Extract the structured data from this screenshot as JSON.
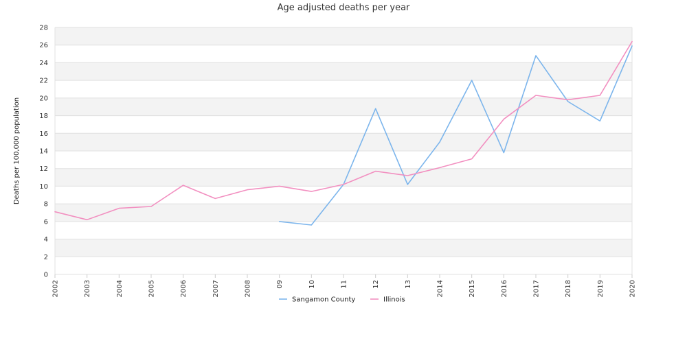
{
  "chart_data": {
    "type": "line",
    "title": "Age adjusted deaths per year",
    "xlabel": "",
    "ylabel": "Deaths per 100,000 population",
    "categories": [
      "2002",
      "2003",
      "2004",
      "2005",
      "2006",
      "2007",
      "2008",
      "09",
      "10",
      "11",
      "12",
      "13",
      "2014",
      "2015",
      "2016",
      "2017",
      "2018",
      "2019",
      "2020"
    ],
    "ylim": [
      0,
      28
    ],
    "yticks": [
      0,
      2,
      4,
      6,
      8,
      10,
      12,
      14,
      16,
      18,
      20,
      22,
      24,
      26,
      28
    ],
    "grid": true,
    "legend_position": "bottom",
    "series": [
      {
        "name": "Sangamon County",
        "color": "#7cb5ec",
        "values": [
          null,
          null,
          null,
          null,
          null,
          null,
          null,
          6.0,
          5.6,
          10.2,
          18.8,
          10.2,
          15.0,
          22.0,
          13.8,
          24.8,
          19.6,
          17.4,
          25.9
        ]
      },
      {
        "name": "Illinois",
        "color": "#f28fc0",
        "values": [
          7.1,
          6.2,
          7.5,
          7.7,
          10.1,
          8.6,
          9.6,
          10.0,
          9.4,
          10.2,
          11.7,
          11.2,
          12.1,
          13.1,
          17.6,
          20.3,
          19.8,
          20.3,
          26.4
        ]
      }
    ]
  }
}
